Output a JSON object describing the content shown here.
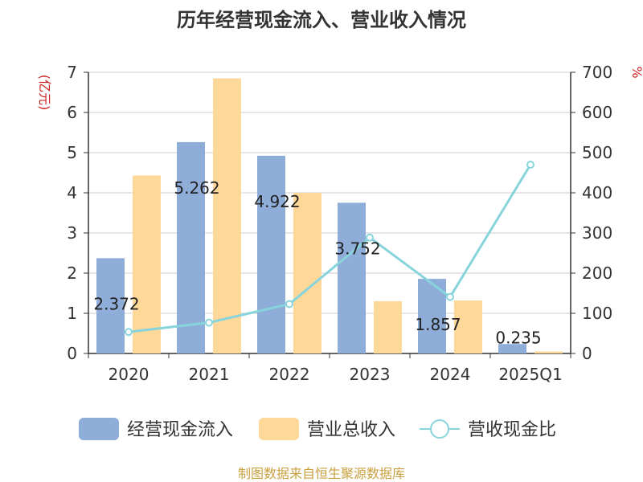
{
  "chart_data": {
    "type": "bar",
    "title": "历年经营现金流入、营业收入情况",
    "categories": [
      "2020",
      "2021",
      "2022",
      "2023",
      "2024",
      "2025Q1"
    ],
    "left_axis": {
      "unit": "(亿元)",
      "ylim": [
        0,
        7
      ],
      "ticks": [
        "0",
        "1",
        "2",
        "3",
        "4",
        "5",
        "6",
        "7"
      ]
    },
    "right_axis": {
      "unit": "%",
      "ylim": [
        0,
        700
      ],
      "ticks": [
        "0",
        "100",
        "200",
        "300",
        "400",
        "500",
        "600",
        "700"
      ]
    },
    "series": [
      {
        "name": "经营现金流入",
        "kind": "bar",
        "axis": "left",
        "color": "#8eadd9",
        "values": [
          2.372,
          5.262,
          4.922,
          3.752,
          1.857,
          0.235
        ],
        "labels": [
          "2.372",
          "5.262",
          "4.922",
          "3.752",
          "1.857",
          "0.235"
        ]
      },
      {
        "name": "营业总收入",
        "kind": "bar",
        "axis": "left",
        "color": "#fed898",
        "values": [
          4.43,
          6.85,
          4.0,
          1.3,
          1.32,
          0.05
        ]
      },
      {
        "name": "营收现金比",
        "kind": "line",
        "axis": "right",
        "color": "#88d4dc",
        "values": [
          53.5,
          76.8,
          123.1,
          288.6,
          140.7,
          470.0
        ]
      }
    ],
    "grid": true,
    "legend_position": "bottom"
  },
  "source": "制图数据来自恒生聚源数据库"
}
